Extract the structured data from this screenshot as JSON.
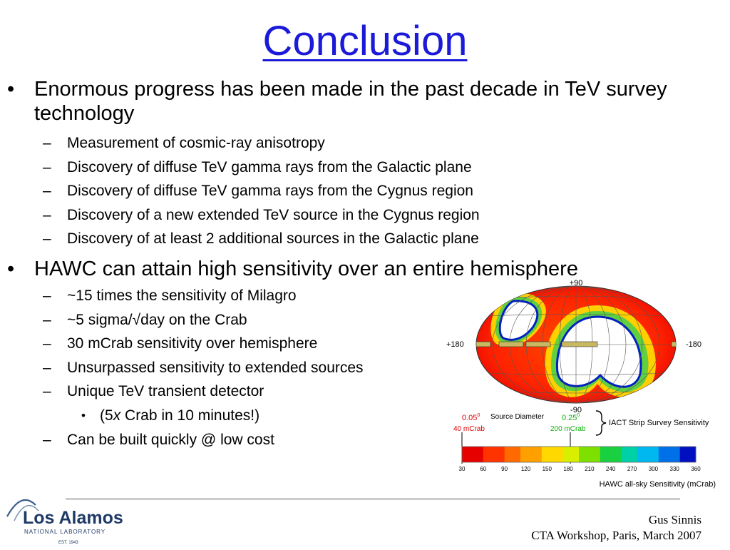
{
  "slide": {
    "title": "Conclusion",
    "bullet_glyph": "•",
    "dash_glyph": "–",
    "sub_bullet_glyph": "•"
  },
  "bullets": [
    {
      "text": "Enormous progress has been made in the past decade in TeV survey technology",
      "sub": [
        "Measurement of cosmic-ray anisotropy",
        "Discovery of diffuse TeV gamma rays from the Galactic plane",
        "Discovery of diffuse TeV gamma rays from the Cygnus region",
        "Discovery of a new extended TeV source in the Cygnus region",
        "Discovery of at least 2 additional sources in the Galactic plane"
      ]
    },
    {
      "text": "HAWC can attain high sensitivity over an entire hemisphere",
      "sub": [
        "~15 times the sensitivity of Milagro",
        "~5 sigma/√day on the Crab",
        "30 mCrab sensitivity over hemisphere",
        "Unsurpassed sensitivity to extended sources",
        "Unique TeV transient detector"
      ],
      "sub_sub": {
        "prefix": "(5",
        "italic": "x",
        "suffix": " Crab in 10 minutes!)"
      },
      "last_sub": "Can be built quickly @ low cost"
    }
  ],
  "figure": {
    "map_labels": {
      "top": "+90",
      "bottom": "-90",
      "left": "+180",
      "right": "-180"
    },
    "legend": {
      "left_value": "0.05",
      "left_sup": "0",
      "left_flux": "40 mCrab",
      "middle_label": "Source Diameter",
      "right_value": "0.25",
      "right_sup": "0",
      "right_flux": "200 mCrab",
      "brace_label": "IACT Strip Survey Sensitivity"
    },
    "colorbar": {
      "ticks": [
        "30",
        "60",
        "90",
        "120",
        "150",
        "180",
        "210",
        "240",
        "270",
        "300",
        "330",
        "360"
      ],
      "title": "HAWC all-sky Sensitivity (mCrab)",
      "colors": [
        "#e60000",
        "#ff3300",
        "#ff6a00",
        "#ffa000",
        "#ffd800",
        "#d8f000",
        "#7de000",
        "#18d040",
        "#00d0a8",
        "#00b8f0",
        "#0070e8",
        "#0010c0"
      ]
    }
  },
  "footer": {
    "logo_main": "Los Alamos",
    "logo_sub": "NATIONAL LABORATORY",
    "logo_est": "EST. 1943",
    "credit_name": "Gus Sinnis",
    "credit_event": "CTA Workshop, Paris, March 2007"
  }
}
